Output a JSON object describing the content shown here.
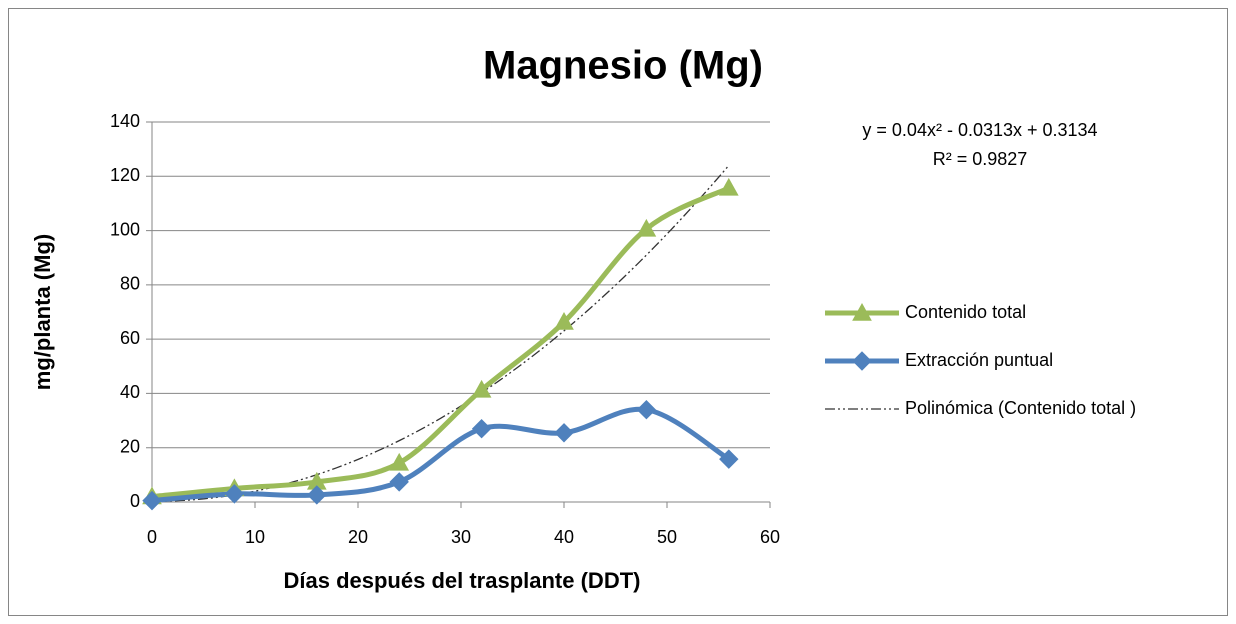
{
  "chart_data": {
    "type": "line",
    "title": "Magnesio (Mg)",
    "x_label": "Días después del trasplante (DDT)",
    "y_label": "mg/planta (Mg)",
    "x": [
      0,
      8,
      16,
      24,
      32,
      40,
      48,
      56
    ],
    "series": [
      {
        "name": "Contenido total",
        "color": "#9bbb59",
        "marker": "triangle",
        "values": [
          2,
          5,
          7.4,
          14.4,
          41.3,
          66.3,
          100.6,
          115.7
        ]
      },
      {
        "name": "Extracción puntual",
        "color": "#4f81bd",
        "marker": "diamond",
        "values": [
          0.5,
          3,
          2.6,
          7.4,
          27,
          25.5,
          34,
          15.8
        ]
      }
    ],
    "trendline": {
      "name": "Polinómica (Contenido total )",
      "color": "#333333",
      "equation": "y = 0.04x² - 0.0313x + 0.3134",
      "r_squared": "R² = 0.9827",
      "coefficients": [
        0.04,
        -0.0313,
        0.3134
      ]
    },
    "xlim": [
      0,
      60
    ],
    "xticks": [
      0,
      10,
      20,
      30,
      40,
      50,
      60
    ],
    "ylim": [
      0,
      140
    ],
    "yticks": [
      0,
      20,
      40,
      60,
      80,
      100,
      120,
      140
    ],
    "grid": true,
    "smooth": true,
    "legend": "right"
  }
}
